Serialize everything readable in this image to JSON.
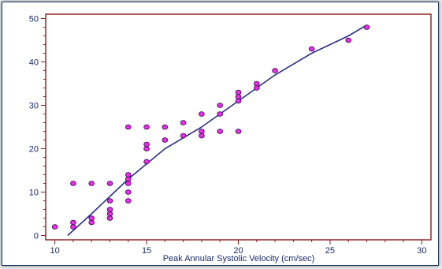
{
  "chart_data": {
    "type": "scatter",
    "title": "",
    "xlabel": "Peak Annular Systolic Velocity (cm/sec)",
    "ylabel": "",
    "xlim": [
      9.5,
      30.5
    ],
    "ylim": [
      -1,
      51
    ],
    "x_ticks": [
      "10",
      "15",
      "20",
      "25",
      "30"
    ],
    "y_ticks": [
      "0",
      "10",
      "20",
      "30",
      "40",
      "50"
    ],
    "x_tick_values": [
      10,
      15,
      20,
      25,
      30
    ],
    "y_tick_values": [
      0,
      10,
      20,
      30,
      40,
      50
    ],
    "grid": false,
    "colors": {
      "axes": "#8b1a1a",
      "text": "#1a2a6c",
      "points_fill": "#e62ee6",
      "points_stroke": "#3a0050",
      "fit_line": "#2b2f8a"
    },
    "series": [
      {
        "points": [
          [
            10,
            2
          ],
          [
            11,
            2
          ],
          [
            11,
            3
          ],
          [
            11,
            12
          ],
          [
            12,
            3
          ],
          [
            12,
            4
          ],
          [
            12,
            12
          ],
          [
            13,
            4
          ],
          [
            13,
            5
          ],
          [
            13,
            6
          ],
          [
            13,
            8
          ],
          [
            13,
            12
          ],
          [
            14,
            8
          ],
          [
            14,
            10
          ],
          [
            14,
            12
          ],
          [
            14,
            13
          ],
          [
            14,
            14
          ],
          [
            14,
            25
          ],
          [
            15,
            17
          ],
          [
            15,
            20
          ],
          [
            15,
            21
          ],
          [
            15,
            25
          ],
          [
            16,
            22
          ],
          [
            16,
            25
          ],
          [
            17,
            23
          ],
          [
            17,
            26
          ],
          [
            18,
            23
          ],
          [
            18,
            24
          ],
          [
            18,
            28
          ],
          [
            19,
            24
          ],
          [
            19,
            28
          ],
          [
            19,
            30
          ],
          [
            20,
            24
          ],
          [
            20,
            31
          ],
          [
            20,
            32
          ],
          [
            20,
            33
          ],
          [
            21,
            34
          ],
          [
            21,
            35
          ],
          [
            22,
            38
          ],
          [
            24,
            43
          ],
          [
            26,
            45
          ],
          [
            27,
            48
          ]
        ]
      },
      {
        "type": "line",
        "points": [
          [
            10.7,
            0
          ],
          [
            12,
            5
          ],
          [
            14,
            13
          ],
          [
            16,
            20
          ],
          [
            18,
            25
          ],
          [
            20,
            31
          ],
          [
            22,
            37
          ],
          [
            24,
            42
          ],
          [
            26,
            46
          ],
          [
            27,
            48.5
          ]
        ]
      }
    ]
  }
}
